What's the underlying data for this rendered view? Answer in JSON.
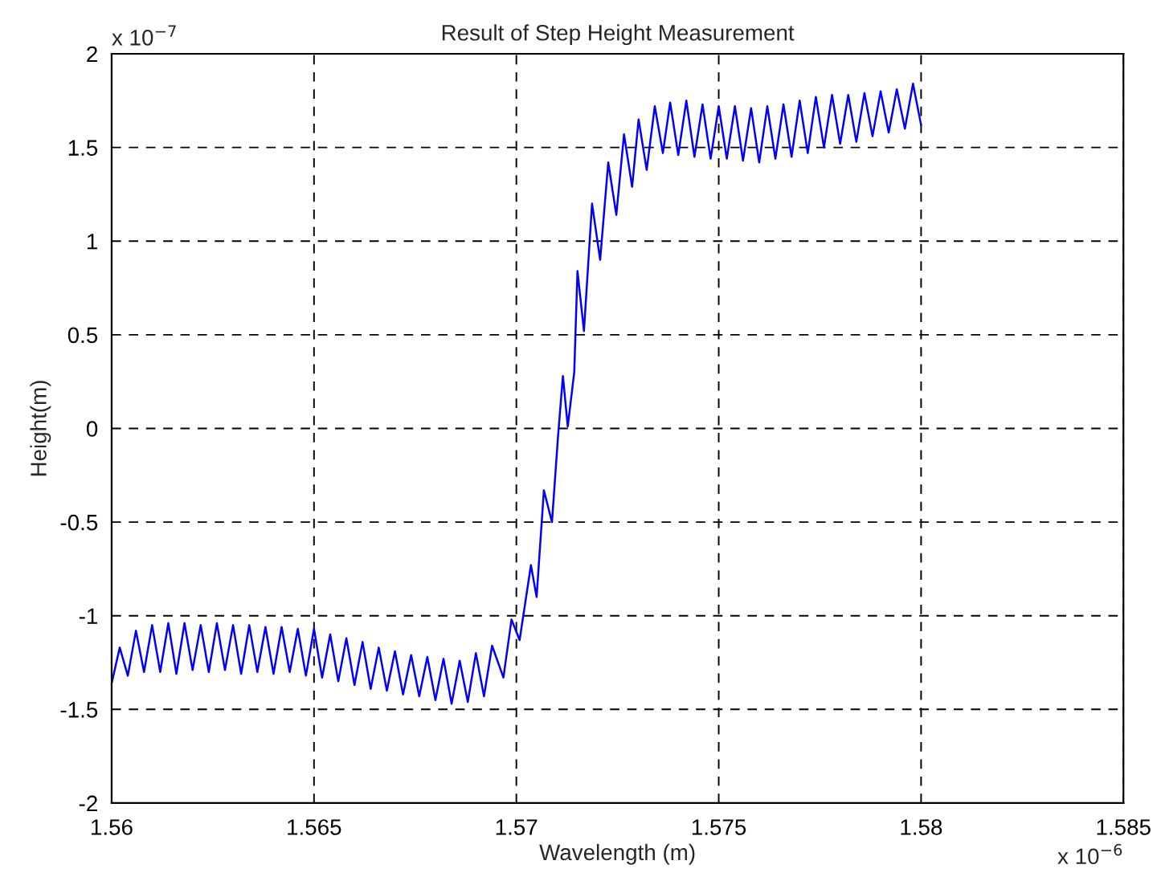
{
  "chart_data": {
    "type": "line",
    "title": "Result of Step Height Measurement",
    "xlabel": "Wavelength (m)",
    "ylabel": "Height(m)",
    "annotations": [
      "x 10$^{−7}$",
      "x 10$^{−6}$"
    ],
    "xlim": [
      1.56,
      1.585
    ],
    "xticks": [
      1.56,
      1.565,
      1.57,
      1.575,
      1.58,
      1.585
    ],
    "ylim": [
      -2,
      2
    ],
    "yticks": [
      -2,
      -1.5,
      -1,
      -0.5,
      0,
      0.5,
      1,
      1.5,
      2
    ],
    "grid": true,
    "marker": "none",
    "line_style": "solid",
    "series": [
      {
        "color": "#0000ff",
        "x": [
          1.56,
          1.5602,
          1.5604,
          1.5606,
          1.5608,
          1.561,
          1.5612,
          1.5614,
          1.5616,
          1.5618,
          1.562,
          1.5622,
          1.5624,
          1.5626,
          1.5628,
          1.563,
          1.5632,
          1.5634,
          1.5636,
          1.5638,
          1.564,
          1.5642,
          1.5644,
          1.5646,
          1.5648,
          1.565,
          1.5652,
          1.5654,
          1.5656,
          1.5658,
          1.566,
          1.5662,
          1.5664,
          1.5666,
          1.5668,
          1.567,
          1.5672,
          1.5674,
          1.5676,
          1.5678,
          1.568,
          1.5682,
          1.5684,
          1.5686,
          1.5688,
          1.569,
          1.5692,
          1.5694,
          1.56968,
          1.56988,
          1.57008,
          1.57036,
          1.5705,
          1.57068,
          1.57088,
          1.57103,
          1.57115,
          1.57127,
          1.57143,
          1.57151,
          1.57167,
          1.57187,
          1.57207,
          1.57227,
          1.57247,
          1.57266,
          1.57286,
          1.57302,
          1.57322,
          1.57342,
          1.57362,
          1.5738,
          1.574,
          1.5742,
          1.5744,
          1.5746,
          1.5748,
          1.575,
          1.5752,
          1.5754,
          1.5756,
          1.5758,
          1.576,
          1.5762,
          1.5764,
          1.5766,
          1.5768,
          1.577,
          1.5772,
          1.5774,
          1.5776,
          1.5778,
          1.578,
          1.5782,
          1.5784,
          1.5786,
          1.5788,
          1.579,
          1.5792,
          1.5794,
          1.5796,
          1.5798,
          1.58
        ],
        "values": [
          -1.36,
          -1.17,
          -1.32,
          -1.08,
          -1.3,
          -1.05,
          -1.3,
          -1.04,
          -1.31,
          -1.04,
          -1.29,
          -1.05,
          -1.3,
          -1.04,
          -1.29,
          -1.05,
          -1.31,
          -1.05,
          -1.3,
          -1.06,
          -1.31,
          -1.06,
          -1.3,
          -1.07,
          -1.32,
          -1.07,
          -1.33,
          -1.1,
          -1.35,
          -1.12,
          -1.37,
          -1.14,
          -1.39,
          -1.17,
          -1.4,
          -1.19,
          -1.42,
          -1.21,
          -1.43,
          -1.22,
          -1.45,
          -1.23,
          -1.47,
          -1.24,
          -1.46,
          -1.2,
          -1.43,
          -1.16,
          -1.33,
          -1.02,
          -1.13,
          -0.73,
          -0.9,
          -0.33,
          -0.5,
          -0.04,
          0.28,
          0.01,
          0.3,
          0.84,
          0.52,
          1.2,
          0.9,
          1.42,
          1.14,
          1.57,
          1.29,
          1.65,
          1.38,
          1.72,
          1.47,
          1.74,
          1.46,
          1.75,
          1.45,
          1.73,
          1.44,
          1.72,
          1.44,
          1.72,
          1.43,
          1.71,
          1.42,
          1.72,
          1.44,
          1.73,
          1.45,
          1.75,
          1.47,
          1.77,
          1.5,
          1.78,
          1.52,
          1.78,
          1.53,
          1.79,
          1.56,
          1.8,
          1.58,
          1.81,
          1.6,
          1.84,
          1.62
        ]
      }
    ]
  }
}
